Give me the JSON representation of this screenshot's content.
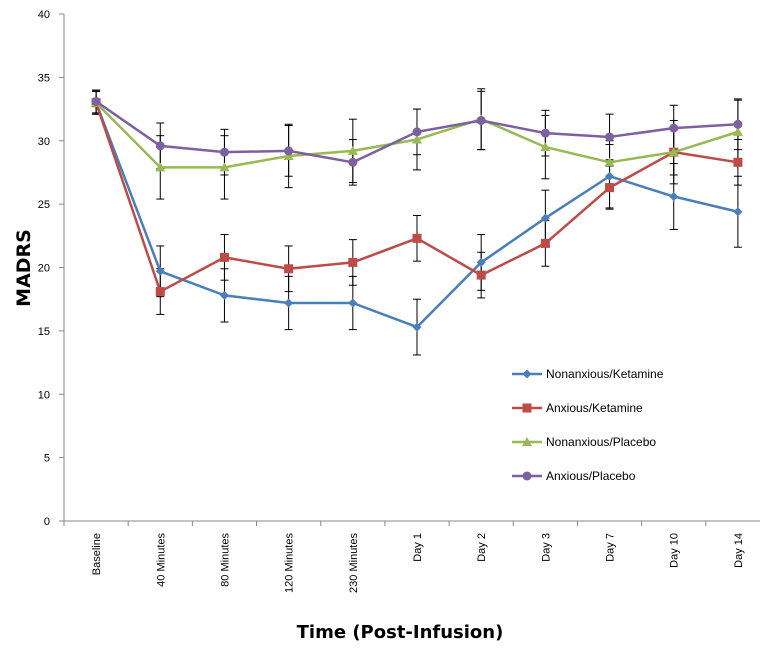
{
  "chart_data": {
    "type": "line",
    "title": "",
    "xlabel": "Time (Post-Infusion)",
    "ylabel": "MADRS",
    "ylim": [
      0,
      40
    ],
    "yticks": [
      0,
      5,
      10,
      15,
      20,
      25,
      30,
      35,
      40
    ],
    "categories": [
      "Baseline",
      "40 Minutes",
      "80 Minutes",
      "120 Minutes",
      "230 Minutes",
      "Day 1",
      "Day 2",
      "Day 3",
      "Day 7",
      "Day 10",
      "Day 14"
    ],
    "grid": false,
    "legend_position": "right",
    "series": [
      {
        "name": "Nonanxious/Ketamine",
        "color": "#4a7ebb",
        "marker": "diamond",
        "values": [
          33.0,
          19.7,
          17.8,
          17.2,
          17.2,
          15.3,
          20.4,
          23.9,
          27.2,
          25.6,
          24.4
        ],
        "errors": [
          0.9,
          2.0,
          2.1,
          2.1,
          2.1,
          2.2,
          2.2,
          2.2,
          2.5,
          2.6,
          2.8
        ]
      },
      {
        "name": "Anxious/Ketamine",
        "color": "#be4b48",
        "marker": "square",
        "values": [
          33.0,
          18.1,
          20.8,
          19.9,
          20.4,
          22.3,
          19.4,
          21.9,
          26.3,
          29.1,
          28.3
        ],
        "errors": [
          0.9,
          1.8,
          1.8,
          1.8,
          1.8,
          1.8,
          1.8,
          1.8,
          1.7,
          1.8,
          1.8
        ]
      },
      {
        "name": "Nonanxious/Placebo",
        "color": "#98b954",
        "marker": "triangle",
        "values": [
          33.0,
          27.9,
          27.9,
          28.8,
          29.2,
          30.1,
          31.7,
          29.5,
          28.3,
          29.1,
          30.7
        ],
        "errors": [
          0.9,
          2.5,
          2.5,
          2.5,
          2.5,
          2.4,
          2.4,
          2.5,
          1.7,
          2.5,
          2.5
        ]
      },
      {
        "name": "Anxious/Placebo",
        "color": "#7d60a0",
        "marker": "circle",
        "values": [
          33.1,
          29.6,
          29.1,
          29.2,
          28.3,
          30.7,
          31.6,
          30.6,
          30.3,
          31.0,
          31.3
        ],
        "errors": [
          0.9,
          1.8,
          1.8,
          2.0,
          1.8,
          1.8,
          2.3,
          1.8,
          1.8,
          1.8,
          2.0
        ]
      }
    ]
  }
}
